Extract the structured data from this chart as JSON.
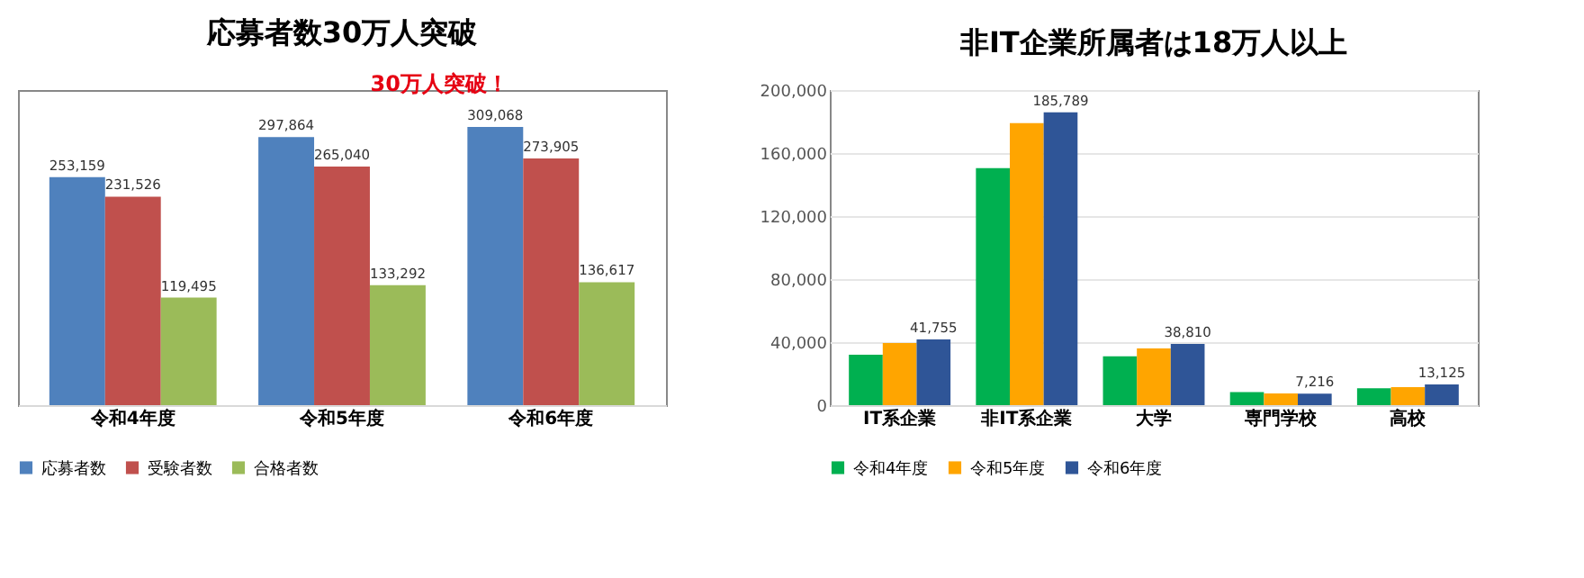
{
  "chart_data": [
    {
      "type": "bar",
      "title": "応募者数30万人突破",
      "categories": [
        "令和4年度",
        "令和5年度",
        "令和6年度"
      ],
      "series": [
        {
          "name": "応募者数",
          "color": "#4f81bd",
          "values": [
            253159,
            297864,
            309068
          ],
          "value_labels": [
            "253,159",
            "297,864",
            "309,068"
          ]
        },
        {
          "name": "受験者数",
          "color": "#c0504d",
          "values": [
            231526,
            265040,
            273905
          ],
          "value_labels": [
            "231,526",
            "265,040",
            "273,905"
          ]
        },
        {
          "name": "合格者数",
          "color": "#9bbb59",
          "values": [
            119495,
            133292,
            136617
          ],
          "value_labels": [
            "119,495",
            "133,292",
            "136,617"
          ]
        }
      ],
      "tick_labels": "x",
      "legend": "bottom",
      "annotations": [
        "30万人突破！"
      ]
    },
    {
      "type": "bar",
      "title": "非IT企業所属者は18万人以上",
      "categories": [
        "IT系企業",
        "非IT系企業",
        "大学",
        "専門学校",
        "高校"
      ],
      "series": [
        {
          "name": "令和4年度",
          "color": "#00b050",
          "values": [
            32000,
            150500,
            31000,
            8300,
            10700
          ]
        },
        {
          "name": "令和5年度",
          "color": "#ffa500",
          "values": [
            39500,
            179000,
            36000,
            7400,
            11400
          ]
        },
        {
          "name": "令和6年度",
          "color": "#2f5597",
          "values": [
            41755,
            185789,
            38810,
            7216,
            13125
          ],
          "value_labels": [
            "41,755",
            "185,789",
            "38,810",
            "7,216",
            "13,125"
          ]
        }
      ],
      "ylim": [
        0,
        200000
      ],
      "yticks": [
        {
          "value": 0,
          "label": "0"
        },
        {
          "value": 40000,
          "label": "40,000"
        },
        {
          "value": 80000,
          "label": "80,000"
        },
        {
          "value": 120000,
          "label": "120,000"
        },
        {
          "value": 160000,
          "label": "160,000"
        },
        {
          "value": 200000,
          "label": "200,000"
        }
      ],
      "grid": "y",
      "legend": "bottom"
    }
  ]
}
